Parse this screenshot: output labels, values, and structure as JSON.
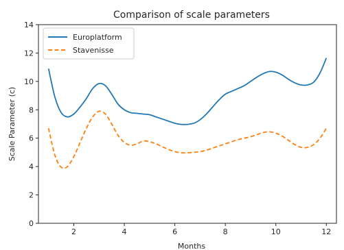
{
  "chart_data": {
    "type": "line",
    "title": "Comparison of scale parameters",
    "xlabel": "Months",
    "ylabel": "Scale Parameter (c)",
    "xlim": [
      0.6,
      12.4
    ],
    "ylim": [
      0,
      14
    ],
    "xticks": [
      2,
      4,
      6,
      8,
      10,
      12
    ],
    "yticks": [
      0,
      2,
      4,
      6,
      8,
      10,
      12,
      14
    ],
    "grid": false,
    "legend_position": "top-left",
    "series": [
      {
        "name": "Europlatform",
        "color": "#1f77b4",
        "dash": "solid",
        "x": [
          1.0,
          1.25,
          1.5,
          1.75,
          2.0,
          2.25,
          2.5,
          2.75,
          3.0,
          3.25,
          3.5,
          3.75,
          4.0,
          4.25,
          4.5,
          4.75,
          5.0,
          5.25,
          5.5,
          5.75,
          6.0,
          6.25,
          6.5,
          6.75,
          7.0,
          7.25,
          7.5,
          7.75,
          8.0,
          8.25,
          8.5,
          8.75,
          9.0,
          9.25,
          9.5,
          9.75,
          10.0,
          10.25,
          10.5,
          10.75,
          11.0,
          11.25,
          11.5,
          11.75,
          12.0
        ],
        "values": [
          10.9,
          8.9,
          7.8,
          7.5,
          7.7,
          8.2,
          8.8,
          9.5,
          9.85,
          9.7,
          9.1,
          8.4,
          8.0,
          7.8,
          7.75,
          7.7,
          7.65,
          7.5,
          7.35,
          7.2,
          7.05,
          6.97,
          6.97,
          7.05,
          7.3,
          7.7,
          8.2,
          8.7,
          9.1,
          9.3,
          9.5,
          9.7,
          10.0,
          10.3,
          10.55,
          10.7,
          10.65,
          10.45,
          10.15,
          9.9,
          9.75,
          9.75,
          9.95,
          10.6,
          11.65
        ]
      },
      {
        "name": "Stavenisse",
        "color": "#ff7f0e",
        "dash": "dashed",
        "x": [
          1.0,
          1.25,
          1.5,
          1.75,
          2.0,
          2.25,
          2.5,
          2.75,
          3.0,
          3.25,
          3.5,
          3.75,
          4.0,
          4.25,
          4.5,
          4.75,
          5.0,
          5.25,
          5.5,
          5.75,
          6.0,
          6.25,
          6.5,
          6.75,
          7.0,
          7.25,
          7.5,
          7.75,
          8.0,
          8.25,
          8.5,
          8.75,
          9.0,
          9.25,
          9.5,
          9.75,
          10.0,
          10.25,
          10.5,
          10.75,
          11.0,
          11.25,
          11.5,
          11.75,
          12.0
        ],
        "values": [
          6.7,
          4.8,
          3.95,
          4.0,
          4.7,
          5.7,
          6.7,
          7.5,
          7.9,
          7.7,
          7.0,
          6.2,
          5.7,
          5.5,
          5.6,
          5.8,
          5.75,
          5.6,
          5.4,
          5.2,
          5.05,
          4.97,
          4.97,
          5.0,
          5.05,
          5.15,
          5.3,
          5.45,
          5.6,
          5.75,
          5.9,
          6.0,
          6.1,
          6.25,
          6.4,
          6.45,
          6.35,
          6.15,
          5.85,
          5.55,
          5.35,
          5.35,
          5.55,
          6.0,
          6.7
        ]
      }
    ]
  }
}
